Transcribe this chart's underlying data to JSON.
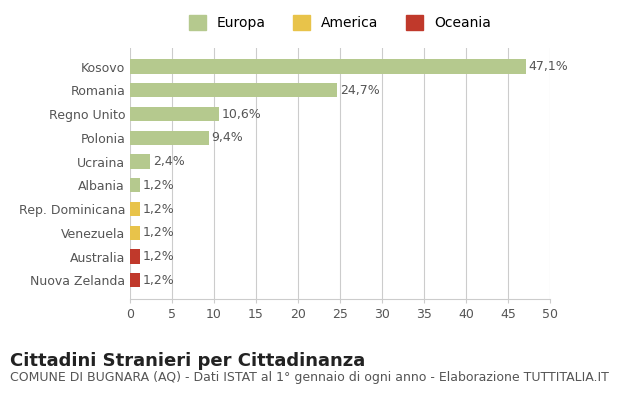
{
  "categories": [
    "Nuova Zelanda",
    "Australia",
    "Venezuela",
    "Rep. Dominicana",
    "Albania",
    "Ucraina",
    "Polonia",
    "Regno Unito",
    "Romania",
    "Kosovo"
  ],
  "values": [
    1.2,
    1.2,
    1.2,
    1.2,
    1.2,
    2.4,
    9.4,
    10.6,
    24.7,
    47.1
  ],
  "labels": [
    "1,2%",
    "1,2%",
    "1,2%",
    "1,2%",
    "1,2%",
    "2,4%",
    "9,4%",
    "10,6%",
    "24,7%",
    "47,1%"
  ],
  "colors": [
    "#c0392b",
    "#c0392b",
    "#e8c34a",
    "#e8c34a",
    "#b5c98e",
    "#b5c98e",
    "#b5c98e",
    "#b5c98e",
    "#b5c98e",
    "#b5c98e"
  ],
  "legend_labels": [
    "Europa",
    "America",
    "Oceania"
  ],
  "legend_colors": [
    "#b5c98e",
    "#e8c34a",
    "#c0392b"
  ],
  "xlim": [
    0,
    50
  ],
  "xticks": [
    0,
    5,
    10,
    15,
    20,
    25,
    30,
    35,
    40,
    45,
    50
  ],
  "title": "Cittadini Stranieri per Cittadinanza",
  "subtitle": "COMUNE DI BUGNARA (AQ) - Dati ISTAT al 1° gennaio di ogni anno - Elaborazione TUTTITALIA.IT",
  "background_color": "#ffffff",
  "grid_color": "#cccccc",
  "bar_height": 0.6,
  "title_fontsize": 13,
  "subtitle_fontsize": 9,
  "label_fontsize": 9,
  "tick_fontsize": 9
}
